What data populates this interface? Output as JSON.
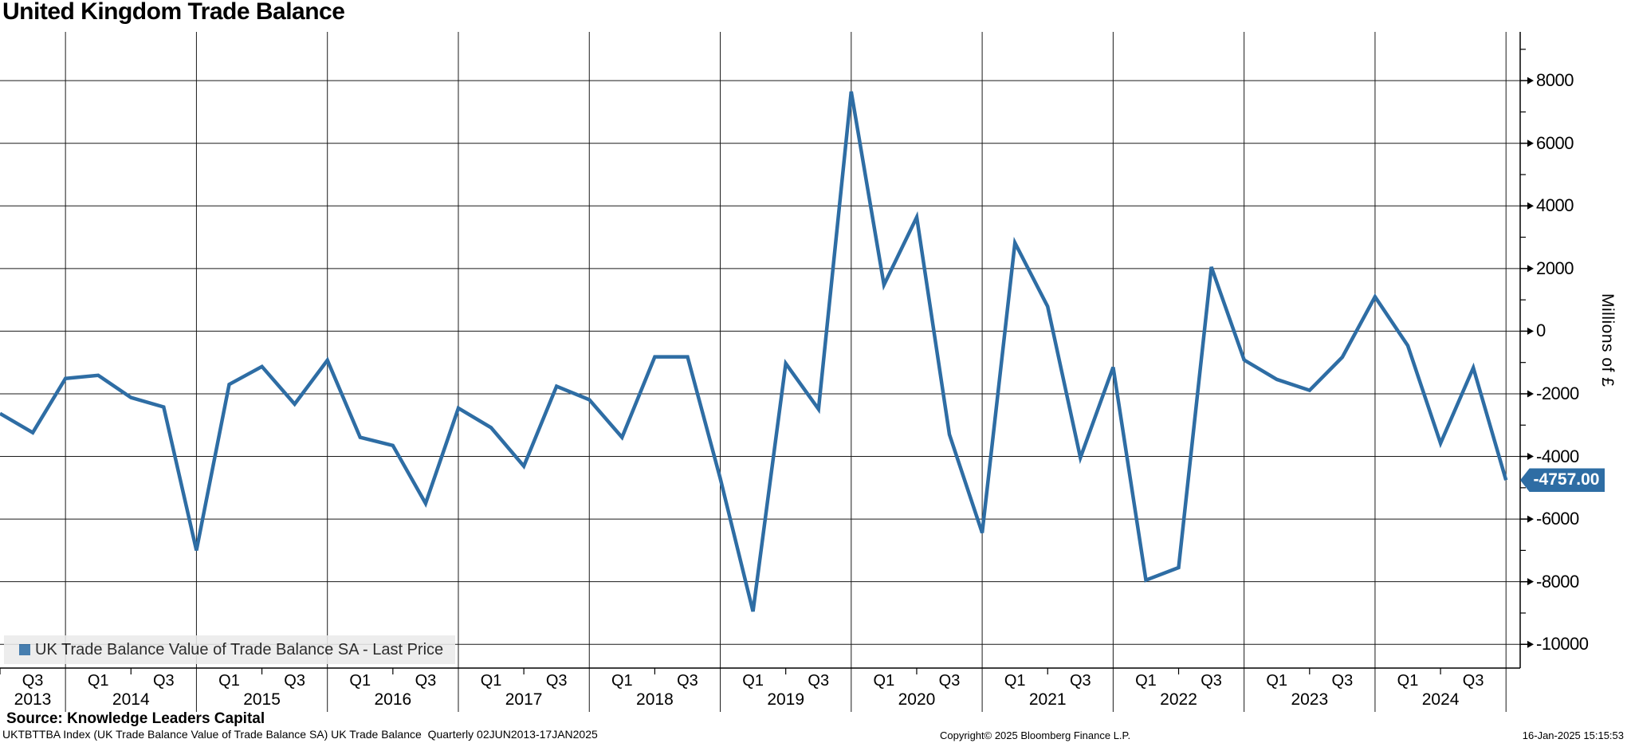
{
  "title": "United Kingdom Trade Balance",
  "legend": {
    "label": "UK Trade Balance Value of Trade Balance SA - Last Price",
    "marker_color": "#2E6DA4",
    "bg_color": "#EBEBEB"
  },
  "y_axis": {
    "title": "Millions of £",
    "tick_labels": [
      "8000",
      "6000",
      "4000",
      "2000",
      "0",
      "-2000",
      "-4000",
      "-6000",
      "-8000",
      "-10000"
    ]
  },
  "x_axis": {
    "years": [
      "2013",
      "2014",
      "2015",
      "2016",
      "2017",
      "2018",
      "2019",
      "2020",
      "2021",
      "2022",
      "2023",
      "2024"
    ]
  },
  "last_price_badge": {
    "text": "-4757.00",
    "value": -4757,
    "bg": "#2E6DA4",
    "text_color": "#FFFFFF"
  },
  "footer": {
    "source": "Source: Knowledge Leaders Capital",
    "meta": "UKTBTTBA Index (UK Trade Balance Value of Trade Balance SA) UK Trade Balance  Quarterly 02JUN2013-17JAN2025",
    "copyright": "Copyright© 2025 Bloomberg Finance L.P.",
    "timestamp": "16-Jan-2025 15:15:53"
  },
  "colors": {
    "line": "#2E6DA4",
    "grid": "#1A1A1A",
    "axis": "#000000"
  },
  "chart_data": {
    "type": "line",
    "title": "United Kingdom Trade Balance",
    "series_name": "UK Trade Balance Value of Trade Balance SA - Last Price",
    "ylabel": "Millions of £",
    "ylim": [
      -10750,
      9550
    ],
    "y_gridline_step": 2000,
    "grid": "on",
    "legend_position": "bottom-left",
    "last_price": -4757.0,
    "frequency": "Quarterly",
    "categories": [
      "Q2 2013",
      "Q3 2013",
      "Q4 2013",
      "Q1 2014",
      "Q2 2014",
      "Q3 2014",
      "Q4 2014",
      "Q1 2015",
      "Q2 2015",
      "Q3 2015",
      "Q4 2015",
      "Q1 2016",
      "Q2 2016",
      "Q3 2016",
      "Q4 2016",
      "Q1 2017",
      "Q2 2017",
      "Q3 2017",
      "Q4 2017",
      "Q1 2018",
      "Q2 2018",
      "Q3 2018",
      "Q4 2018",
      "Q1 2019",
      "Q2 2019",
      "Q3 2019",
      "Q4 2019",
      "Q1 2020",
      "Q2 2020",
      "Q3 2020",
      "Q4 2020",
      "Q1 2021",
      "Q2 2021",
      "Q3 2021",
      "Q4 2021",
      "Q1 2022",
      "Q2 2022",
      "Q3 2022",
      "Q4 2022",
      "Q1 2023",
      "Q2 2023",
      "Q3 2023",
      "Q4 2023",
      "Q1 2024",
      "Q2 2024",
      "Q3 2024",
      "Q4 2024"
    ],
    "values": [
      -2630,
      -3240,
      -1510,
      -1410,
      -2120,
      -2420,
      -7000,
      -1700,
      -1130,
      -2330,
      -930,
      -3390,
      -3650,
      -5500,
      -2460,
      -3080,
      -4310,
      -1760,
      -2190,
      -3390,
      -820,
      -820,
      -4700,
      -8950,
      -1030,
      -2490,
      7650,
      1480,
      3640,
      -3300,
      -6440,
      2820,
      790,
      -4040,
      -1150,
      -7950,
      -7550,
      2050,
      -920,
      -1540,
      -1890,
      -830,
      1100,
      -460,
      -3580,
      -1170,
      -4757
    ]
  }
}
